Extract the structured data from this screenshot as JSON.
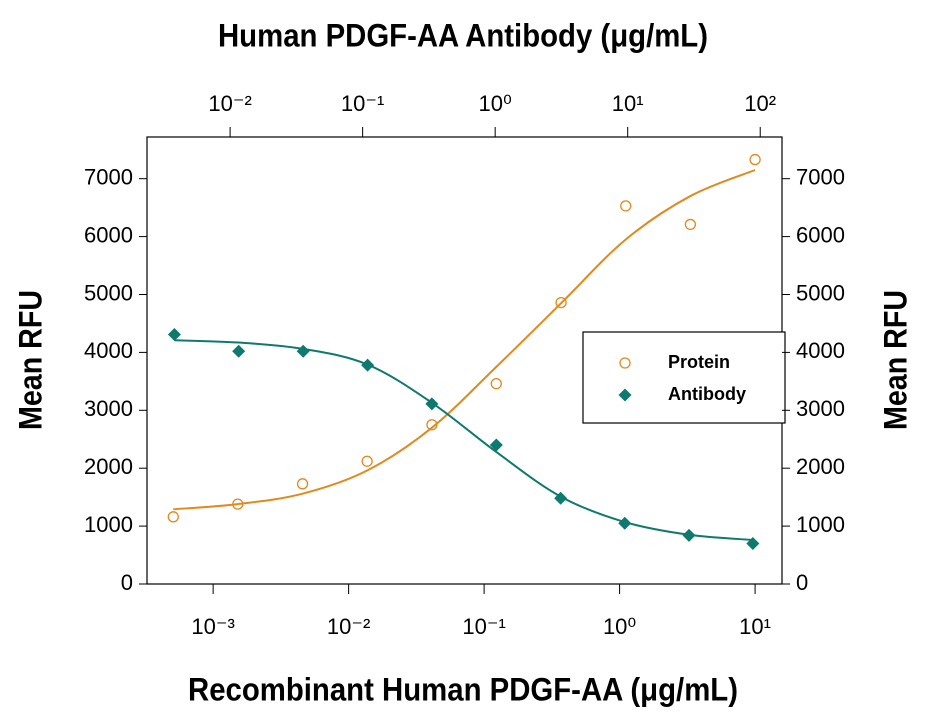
{
  "chart_data": {
    "type": "scatter",
    "x2label": "Human PDGF-AA Antibody (μg/mL)",
    "xlabel": "Recombinant Human PDGF-AA (μg/mL)",
    "ylabel": "Mean RFU",
    "y2label": "Mean RFU",
    "xscale": "log",
    "x2scale": "log",
    "xlim": [
      0.000325,
      15.8
    ],
    "xticks": [
      {
        "value": 0.001,
        "label": "10⁻³"
      },
      {
        "value": 0.01,
        "label": "10⁻²"
      },
      {
        "value": 0.1,
        "label": "10⁻¹"
      },
      {
        "value": 1,
        "label": "10⁰"
      },
      {
        "value": 10,
        "label": "10¹"
      }
    ],
    "x2lim": [
      0.00236,
      146
    ],
    "x2ticks": [
      {
        "value": 0.01,
        "label": "10⁻²"
      },
      {
        "value": 0.1,
        "label": "10⁻¹"
      },
      {
        "value": 1,
        "label": "10⁰"
      },
      {
        "value": 10,
        "label": "10¹"
      },
      {
        "value": 100,
        "label": "10²"
      }
    ],
    "ylim": [
      0,
      7720
    ],
    "yticks": [
      0,
      1000,
      2000,
      3000,
      4000,
      5000,
      6000,
      7000
    ],
    "y2lim": [
      0,
      7720
    ],
    "y2ticks": [
      0,
      1000,
      2000,
      3000,
      4000,
      5000,
      6000,
      7000
    ],
    "legend": "center right",
    "series": [
      {
        "name": "Protein",
        "color": "#e08a1e",
        "marker": "open-circle",
        "axis": "x",
        "x": [
          0.000508,
          0.00152,
          0.00457,
          0.0137,
          0.0412,
          0.123,
          0.37,
          1.11,
          3.33,
          10
        ],
        "values": [
          1160,
          1380,
          1730,
          2120,
          2750,
          3460,
          4860,
          6530,
          6210,
          7330
        ],
        "fit": [
          1290,
          1380,
          1560,
          1960,
          2700,
          3750,
          4850,
          5950,
          6700,
          7150
        ]
      },
      {
        "name": "Antibody",
        "color": "#0e7a6e",
        "marker": "diamond",
        "axis": "x2",
        "x": [
          0.0038,
          0.0116,
          0.0356,
          0.109,
          0.333,
          1.02,
          3.12,
          9.5,
          29,
          88
        ],
        "values": [
          4310,
          4020,
          4020,
          3780,
          3110,
          2400,
          1480,
          1050,
          840,
          700
        ],
        "fit": [
          4210,
          4170,
          4060,
          3790,
          3130,
          2280,
          1510,
          1070,
          850,
          760
        ]
      }
    ]
  }
}
